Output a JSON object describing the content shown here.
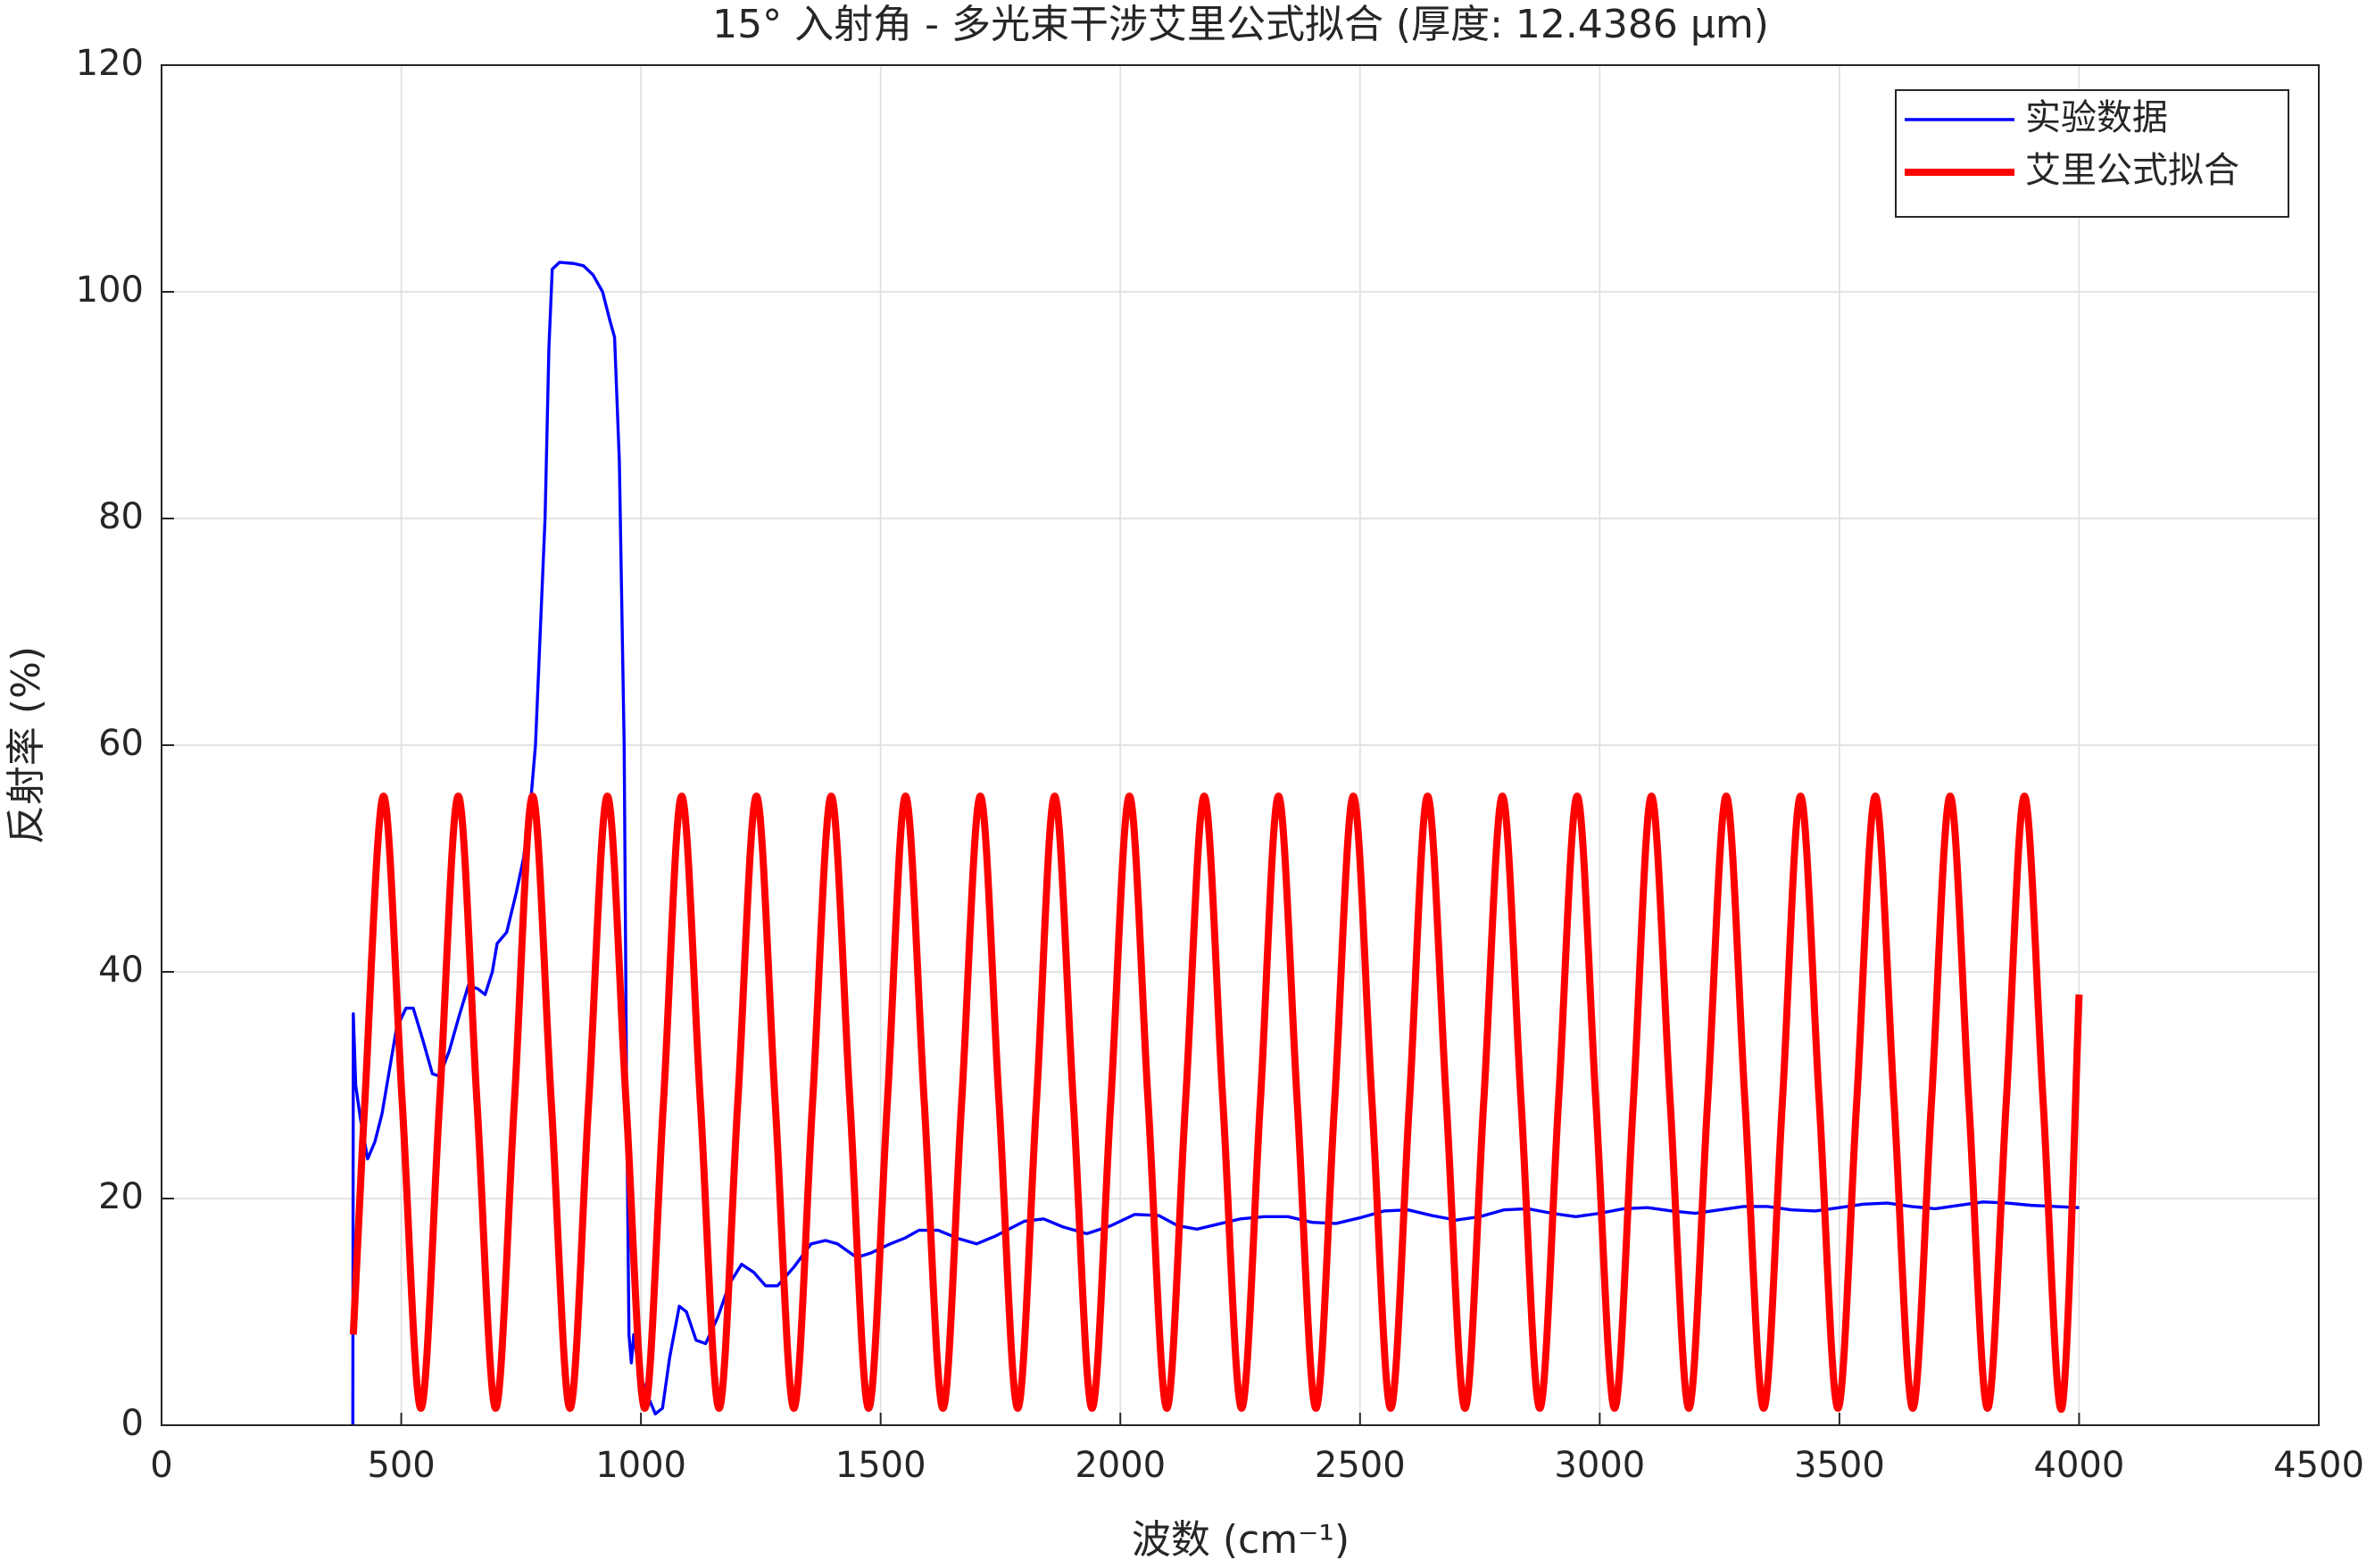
{
  "chart_data": {
    "type": "line",
    "title": "15° 入射角 - 多光束干涉艾里公式拟合 (厚度: 12.4386 μm)",
    "x_label": "波数 (cm⁻¹)",
    "y_label": "反射率 (%)",
    "xlim": [
      0,
      4500
    ],
    "xticks": [
      0,
      500,
      1000,
      1500,
      2000,
      2500,
      3000,
      3500,
      4000,
      4500
    ],
    "ylim": [
      0,
      120
    ],
    "yticks": [
      0,
      20,
      40,
      60,
      80,
      100,
      120
    ],
    "grid": true,
    "legend": "northeast",
    "series": [
      {
        "name": "实验数据",
        "color": "#0000ff",
        "smooth": false,
        "x": [
          399,
          400,
          405,
          415,
          430,
          445,
          460,
          470,
          490,
          510,
          525,
          545,
          565,
          580,
          600,
          620,
          640,
          660,
          675,
          690,
          700,
          720,
          740,
          755,
          770,
          780,
          790,
          800,
          808,
          815,
          830,
          860,
          880,
          900,
          920,
          935,
          945,
          955,
          965,
          970,
          975,
          980,
          985,
          995,
          1010,
          1030,
          1045,
          1060,
          1080,
          1095,
          1115,
          1135,
          1160,
          1185,
          1210,
          1235,
          1260,
          1285,
          1320,
          1355,
          1385,
          1410,
          1450,
          1480,
          1520,
          1550,
          1580,
          1620,
          1660,
          1700,
          1740,
          1800,
          1840,
          1880,
          1930,
          1980,
          2030,
          2080,
          2120,
          2160,
          2200,
          2250,
          2300,
          2350,
          2400,
          2450,
          2500,
          2550,
          2600,
          2650,
          2700,
          2750,
          2800,
          2850,
          2900,
          2950,
          3000,
          3050,
          3100,
          3150,
          3200,
          3250,
          3300,
          3350,
          3400,
          3450,
          3500,
          3550,
          3600,
          3650,
          3700,
          3750,
          3800,
          3850,
          3900,
          3950,
          4000
        ],
        "values": [
          0,
          36.3,
          30,
          27,
          23.5,
          25,
          27.5,
          30,
          35,
          36.8,
          36.8,
          34,
          31,
          30.8,
          33,
          36,
          38.8,
          38.5,
          38,
          40,
          42.5,
          43.5,
          47,
          50,
          55,
          60,
          70,
          80,
          95,
          102,
          102.6,
          102.5,
          102.3,
          101.5,
          100,
          97.5,
          96,
          85,
          60,
          30,
          8,
          5.5,
          8,
          5,
          3,
          1,
          1.5,
          6,
          10.5,
          10,
          7.5,
          7.2,
          9.5,
          12.5,
          14.2,
          13.5,
          12.3,
          12.3,
          14,
          16,
          16.3,
          16,
          14.8,
          15.2,
          16,
          16.5,
          17.2,
          17.2,
          16.5,
          16,
          16.7,
          18,
          18.2,
          17.5,
          16.9,
          17.6,
          18.6,
          18.5,
          17.6,
          17.3,
          17.7,
          18.2,
          18.4,
          18.4,
          17.9,
          17.8,
          18.3,
          18.9,
          19,
          18.5,
          18.1,
          18.4,
          19,
          19.1,
          18.7,
          18.4,
          18.7,
          19.1,
          19.2,
          18.9,
          18.7,
          19,
          19.3,
          19.3,
          19,
          18.9,
          19.2,
          19.5,
          19.6,
          19.3,
          19.1,
          19.4,
          19.7,
          19.6,
          19.4,
          19.3,
          19.2
        ]
      },
      {
        "name": "艾里公式拟合",
        "color": "#ff0000",
        "smooth": true,
        "x": [
          400,
          424,
          463,
          502,
          541,
          580,
          619,
          658,
          697,
          736,
          774,
          813,
          852,
          891,
          930,
          969,
          1008,
          1047,
          1085,
          1124,
          1163,
          1202,
          1241,
          1280,
          1319,
          1358,
          1397,
          1436,
          1475,
          1514,
          1552,
          1591,
          1630,
          1669,
          1708,
          1747,
          1786,
          1825,
          1863,
          1902,
          1941,
          1980,
          2019,
          2058,
          2097,
          2136,
          2175,
          2214,
          2253,
          2292,
          2330,
          2369,
          2408,
          2447,
          2486,
          2525,
          2564,
          2603,
          2641,
          2680,
          2719,
          2758,
          2797,
          2836,
          2875,
          2914,
          2953,
          2992,
          3031,
          3070,
          3108,
          3147,
          3186,
          3225,
          3264,
          3303,
          3342,
          3381,
          3419,
          3458,
          3497,
          3536,
          3575,
          3614,
          3653,
          3692,
          3731,
          3770,
          3809,
          3848,
          3886,
          3925,
          3964,
          4000
        ],
        "values": [
          8,
          28.5,
          55.5,
          28.5,
          1.5,
          28.5,
          55.5,
          28.5,
          1.5,
          28.5,
          55.5,
          28.5,
          1.5,
          28.5,
          55.5,
          28.5,
          1.5,
          28.5,
          55.5,
          28.5,
          1.5,
          28.5,
          55.5,
          28.5,
          1.5,
          28.5,
          55.5,
          28.5,
          1.5,
          28.5,
          55.5,
          28.5,
          1.5,
          28.5,
          55.5,
          28.5,
          1.5,
          28.5,
          55.5,
          28.5,
          1.5,
          28.5,
          55.5,
          28.5,
          1.5,
          28.5,
          55.5,
          28.5,
          1.5,
          28.5,
          55.5,
          28.5,
          1.5,
          28.5,
          55.5,
          28.5,
          1.5,
          28.5,
          55.5,
          28.5,
          1.5,
          28.5,
          55.5,
          28.5,
          1.5,
          28.5,
          55.5,
          28.5,
          1.5,
          28.5,
          55.5,
          28.5,
          1.5,
          28.5,
          55.5,
          28.5,
          1.5,
          28.5,
          55.5,
          28.5,
          1.5,
          28.5,
          55.5,
          28.5,
          1.5,
          28.5,
          55.5,
          28.5,
          1.5,
          28.5,
          55.5,
          28.5,
          1.5,
          38
        ]
      }
    ]
  }
}
